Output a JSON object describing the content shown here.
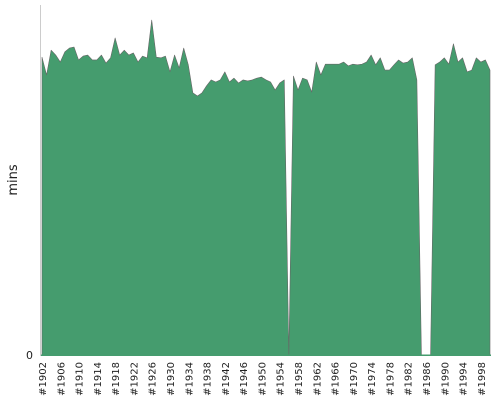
{
  "chart_data": {
    "type": "area",
    "ylabel": "mins",
    "color": "#459c6e",
    "ylim": [
      0,
      100
    ],
    "yticks": [
      0
    ],
    "categories": [
      "#1902",
      null,
      null,
      null,
      "#1906",
      null,
      null,
      null,
      "#1910",
      null,
      null,
      null,
      "#1914",
      null,
      null,
      null,
      "#1918",
      null,
      null,
      null,
      "#1922",
      null,
      null,
      null,
      "#1926",
      null,
      null,
      null,
      "#1930",
      null,
      null,
      null,
      "#1934",
      null,
      null,
      null,
      "#1938",
      null,
      null,
      null,
      "#1942",
      null,
      null,
      null,
      "#1946",
      null,
      null,
      null,
      "#1950",
      null,
      null,
      null,
      "#1954",
      null,
      null,
      null,
      "#1958",
      null,
      null,
      null,
      "#1962",
      null,
      null,
      null,
      "#1966",
      null,
      null,
      null,
      "#1970",
      null,
      null,
      null,
      "#1974",
      null,
      null,
      null,
      "#1978",
      null,
      null,
      null,
      "#1982",
      null,
      null,
      null,
      "#1986",
      null,
      null,
      null,
      "#1990",
      null,
      null,
      null,
      "#1994",
      null,
      null,
      null,
      "#1998",
      null,
      null
    ],
    "values": [
      85.1,
      80,
      87.1,
      85.7,
      83.7,
      86.6,
      87.7,
      88,
      84.3,
      85.4,
      85.7,
      84.3,
      84.3,
      85.7,
      83.4,
      84.9,
      90.6,
      85.7,
      87.1,
      85.7,
      86.3,
      83.7,
      85.4,
      84.9,
      95.7,
      85.1,
      84.9,
      85.4,
      80.9,
      85.7,
      82,
      87.7,
      82.9,
      74.9,
      74,
      74.9,
      76.9,
      78.6,
      78,
      78.6,
      80.9,
      78,
      79.1,
      77.7,
      78.6,
      78.3,
      78.6,
      79.1,
      79.4,
      78.6,
      78,
      75.7,
      77.7,
      78.6,
      0,
      79.7,
      75.7,
      79.1,
      78.6,
      75.1,
      83.7,
      80,
      83.1,
      83.1,
      83.1,
      83.1,
      83.7,
      82.6,
      83.1,
      82.9,
      83.1,
      83.7,
      85.7,
      82.9,
      84.9,
      81.4,
      81.4,
      82.9,
      84.3,
      83.4,
      83.7,
      84.9,
      78.6,
      0,
      null,
      0,
      82.9,
      83.7,
      84.9,
      83.1,
      88.9,
      83.7,
      84.9,
      80.9,
      81.4,
      84.9,
      83.7,
      84.3,
      81.4
    ]
  }
}
